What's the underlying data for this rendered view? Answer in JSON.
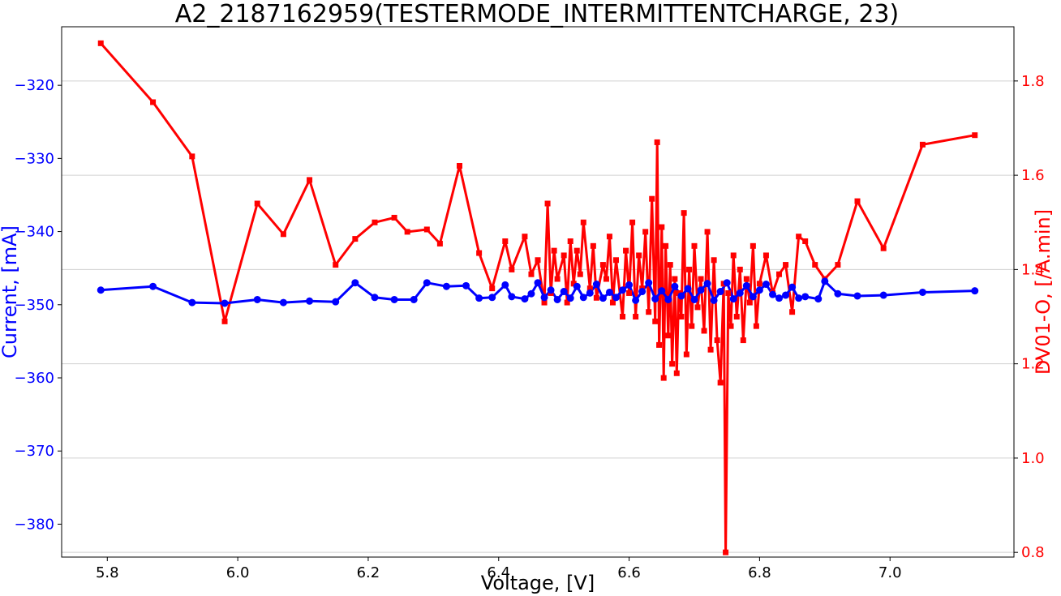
{
  "chart_data": {
    "type": "line",
    "title": "A2_2187162959(TESTERMODE_INTERMITTENTCHARGE, 23)",
    "xlabel": "Voltage, [V]",
    "ylabel_left": "Current, [mA]",
    "ylabel_right": "DV01-O, [/A.min]",
    "xlim": [
      5.73,
      7.19
    ],
    "ylim_left": [
      -384.5,
      -312.0
    ],
    "ylim_right": [
      0.79,
      1.915
    ],
    "x_ticks": [
      5.8,
      6.0,
      6.2,
      6.4,
      6.6,
      6.8,
      7.0
    ],
    "x_tick_labels": [
      "5.8",
      "6.0",
      "6.2",
      "6.4",
      "6.6",
      "6.8",
      "7.0"
    ],
    "y_left_ticks": [
      -320,
      -330,
      -340,
      -350,
      -360,
      -370,
      -380
    ],
    "y_left_tick_labels": [
      "−320",
      "−330",
      "−340",
      "−350",
      "−360",
      "−370",
      "−380"
    ],
    "y_right_ticks": [
      1.8,
      1.6,
      1.4,
      1.2,
      1.0,
      0.8
    ],
    "y_right_tick_labels": [
      "1.8",
      "1.6",
      "1.4",
      "1.2",
      "1.0",
      "0.8"
    ],
    "grid": "horizontal lines at right-axis ticks",
    "colors": {
      "current": "#0000ff",
      "dv": "#ff0000",
      "grid": "#d0d0d0"
    },
    "series": [
      {
        "axis": "left",
        "marker": "circle",
        "color": "#0000ff",
        "x": [
          5.79,
          5.87,
          5.93,
          5.98,
          6.03,
          6.07,
          6.11,
          6.15,
          6.18,
          6.21,
          6.24,
          6.27,
          6.29,
          6.32,
          6.35,
          6.37,
          6.39,
          6.41,
          6.42,
          6.44,
          6.45,
          6.46,
          6.47,
          6.48,
          6.49,
          6.5,
          6.51,
          6.52,
          6.53,
          6.54,
          6.55,
          6.56,
          6.57,
          6.58,
          6.59,
          6.6,
          6.61,
          6.62,
          6.63,
          6.64,
          6.65,
          6.66,
          6.67,
          6.68,
          6.69,
          6.7,
          6.71,
          6.72,
          6.73,
          6.74,
          6.75,
          6.76,
          6.77,
          6.78,
          6.79,
          6.8,
          6.81,
          6.82,
          6.83,
          6.84,
          6.85,
          6.86,
          6.87,
          6.89,
          6.9,
          6.92,
          6.95,
          6.99,
          7.05,
          7.13
        ],
        "y": [
          -348.0,
          -347.5,
          -349.7,
          -349.8,
          -349.3,
          -349.7,
          -349.5,
          -349.6,
          -347.0,
          -349.0,
          -349.3,
          -349.3,
          -347.0,
          -347.5,
          -347.4,
          -349.1,
          -349.0,
          -347.3,
          -348.9,
          -349.2,
          -348.5,
          -347.0,
          -349.0,
          -348.0,
          -349.3,
          -348.2,
          -349.1,
          -347.5,
          -349.0,
          -348.4,
          -347.2,
          -349.1,
          -348.3,
          -349.0,
          -348.0,
          -347.3,
          -349.4,
          -348.2,
          -347.0,
          -349.2,
          -348.1,
          -349.3,
          -347.5,
          -348.8,
          -347.8,
          -349.3,
          -348.0,
          -347.1,
          -349.4,
          -348.2,
          -347.0,
          -349.2,
          -348.4,
          -347.4,
          -348.9,
          -348.0,
          -347.2,
          -348.6,
          -349.1,
          -348.7,
          -347.6,
          -349.1,
          -348.9,
          -349.2,
          -346.8,
          -348.5,
          -348.8,
          -348.7,
          -348.3,
          -348.1
        ]
      },
      {
        "axis": "right",
        "marker": "square",
        "color": "#ff0000",
        "x": [
          5.79,
          5.87,
          5.93,
          5.98,
          6.03,
          6.07,
          6.11,
          6.15,
          6.18,
          6.21,
          6.24,
          6.26,
          6.29,
          6.31,
          6.34,
          6.37,
          6.39,
          6.41,
          6.42,
          6.44,
          6.45,
          6.46,
          6.47,
          6.475,
          6.48,
          6.485,
          6.49,
          6.5,
          6.505,
          6.51,
          6.515,
          6.52,
          6.525,
          6.53,
          6.54,
          6.545,
          6.55,
          6.56,
          6.565,
          6.57,
          6.575,
          6.58,
          6.59,
          6.595,
          6.6,
          6.605,
          6.61,
          6.615,
          6.62,
          6.625,
          6.63,
          6.635,
          6.64,
          6.643,
          6.646,
          6.65,
          6.653,
          6.656,
          6.66,
          6.663,
          6.666,
          6.67,
          6.673,
          6.676,
          6.68,
          6.684,
          6.688,
          6.692,
          6.696,
          6.7,
          6.705,
          6.71,
          6.715,
          6.72,
          6.725,
          6.73,
          6.735,
          6.74,
          6.745,
          6.748,
          6.752,
          6.756,
          6.76,
          6.765,
          6.77,
          6.775,
          6.78,
          6.785,
          6.79,
          6.795,
          6.8,
          6.81,
          6.82,
          6.83,
          6.84,
          6.85,
          6.86,
          6.87,
          6.885,
          6.9,
          6.92,
          6.95,
          6.99,
          7.05,
          7.13
        ],
        "y": [
          1.88,
          1.755,
          1.64,
          1.29,
          1.54,
          1.475,
          1.59,
          1.41,
          1.465,
          1.5,
          1.51,
          1.48,
          1.485,
          1.455,
          1.62,
          1.435,
          1.36,
          1.46,
          1.4,
          1.47,
          1.39,
          1.42,
          1.33,
          1.54,
          1.35,
          1.44,
          1.38,
          1.43,
          1.33,
          1.46,
          1.37,
          1.44,
          1.39,
          1.5,
          1.36,
          1.45,
          1.34,
          1.41,
          1.38,
          1.47,
          1.33,
          1.42,
          1.3,
          1.44,
          1.35,
          1.5,
          1.3,
          1.43,
          1.36,
          1.48,
          1.31,
          1.55,
          1.29,
          1.67,
          1.24,
          1.49,
          1.17,
          1.45,
          1.26,
          1.41,
          1.2,
          1.38,
          1.18,
          1.35,
          1.3,
          1.52,
          1.22,
          1.4,
          1.28,
          1.45,
          1.32,
          1.38,
          1.27,
          1.48,
          1.23,
          1.42,
          1.25,
          1.16,
          1.37,
          0.8,
          1.35,
          1.28,
          1.43,
          1.3,
          1.4,
          1.25,
          1.38,
          1.33,
          1.45,
          1.28,
          1.37,
          1.43,
          1.35,
          1.39,
          1.41,
          1.31,
          1.47,
          1.46,
          1.41,
          1.38,
          1.41,
          1.545,
          1.445,
          1.665,
          1.685
        ]
      }
    ]
  }
}
